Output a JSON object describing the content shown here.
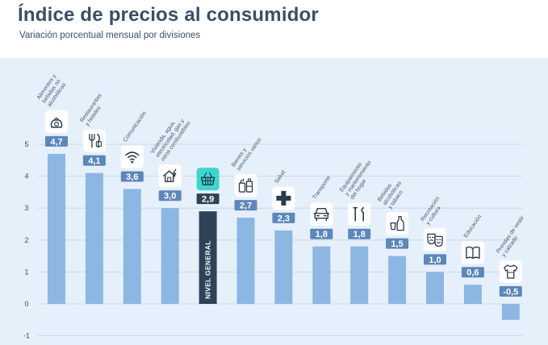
{
  "title": "Índice de precios al consumidor",
  "subtitle": "Variación porcentual mensual por divisiones",
  "colors": {
    "bar": "#8cb7e3",
    "highlight_bar": "#2f4257",
    "label_box": "#5d87ba",
    "highlight_label_box": "#2f4257",
    "highlight_icon": "#3dd6cf",
    "background": "#e6f0fb",
    "title": "#3a4f66"
  },
  "chart_data": {
    "type": "bar",
    "title": "Índice de precios al consumidor",
    "subtitle": "Variación porcentual mensual por divisiones",
    "ylim": [
      -1,
      5
    ],
    "yticks": [
      -1,
      0,
      1,
      2,
      3,
      4,
      5
    ],
    "grid": true,
    "categories": [
      "Alimentos y bebidas no alcohólicas",
      "Restaurantes y hoteles",
      "Comunicación",
      "Vivienda, agua, electricidad, gas y otros combustibles",
      "NIVEL GENERAL",
      "Bienes y servicios varios",
      "Salud",
      "Transporte",
      "Equipamiento y mantenimiento del hogar",
      "Bebidas alcohólicas y tabaco",
      "Recreación y cultura",
      "Educación",
      "Prendas de vestir y calzado"
    ],
    "category_lines": [
      [
        "Alimentos y",
        "bebidas no",
        "alcohólicas"
      ],
      [
        "Restaurantes",
        "y hoteles"
      ],
      [
        "Comunicación"
      ],
      [
        "Vivienda, agua,",
        "electricidad, gas y",
        "otros combustibles"
      ],
      [],
      [
        "Bienes y",
        "servicios varios"
      ],
      [
        "Salud"
      ],
      [
        "Transporte"
      ],
      [
        "Equipamiento",
        "y mantenimiento",
        "del hogar"
      ],
      [
        "Bebidas",
        "alcohólicas",
        "y tabaco"
      ],
      [
        "Recreación",
        "y cultura"
      ],
      [
        "Educación"
      ],
      [
        "Prendas de vestir",
        "y calzado"
      ]
    ],
    "values": [
      4.7,
      4.1,
      3.6,
      3.0,
      2.9,
      2.7,
      2.3,
      1.8,
      1.8,
      1.5,
      1.0,
      0.6,
      -0.5
    ],
    "value_labels": [
      "4,7",
      "4,1",
      "3,6",
      "3,0",
      "2,9",
      "2,7",
      "2,3",
      "1,8",
      "1,8",
      "1,5",
      "1,0",
      "0,6",
      "-0,5"
    ],
    "highlight_index": 4,
    "highlight_bar_label": "NIVEL GENERAL",
    "icons": [
      "food-bag-icon",
      "fork-knife-icon",
      "wifi-icon",
      "house-lightning-icon",
      "shopping-basket-icon",
      "toiletries-icon",
      "health-cross-icon",
      "car-icon",
      "tools-icon",
      "bottle-glass-icon",
      "theater-masks-icon",
      "book-icon",
      "shirt-icon"
    ]
  }
}
